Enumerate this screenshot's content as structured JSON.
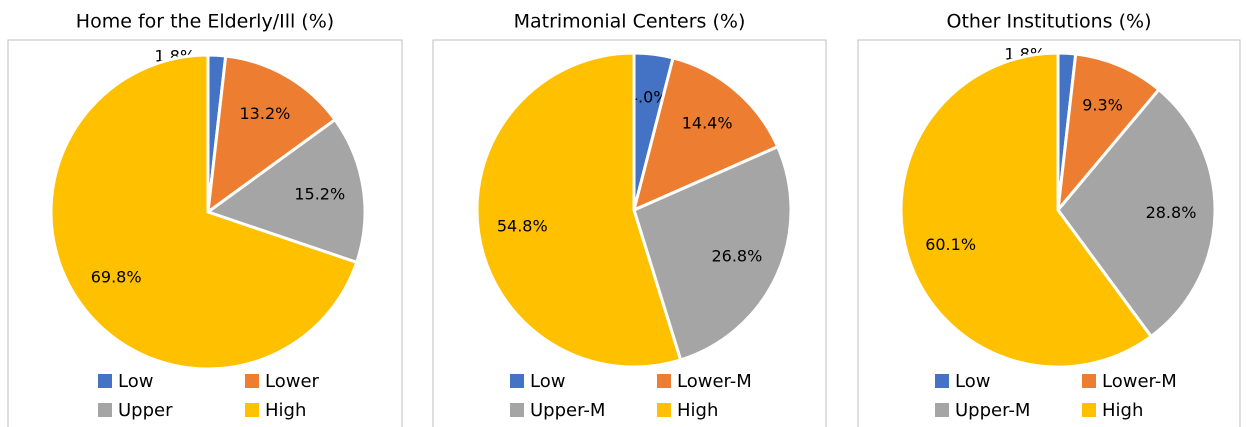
{
  "chart_data": [
    {
      "type": "pie",
      "title": "Home for the Elderly/Ill (%)",
      "categories": [
        "Low",
        "Lower",
        "Upper",
        "High"
      ],
      "values": [
        1.8,
        13.2,
        15.2,
        69.8
      ],
      "value_labels": [
        "1.8%",
        "13.2%",
        "15.2%",
        "69.8%"
      ],
      "colors": [
        "#4472c4",
        "#ed7d31",
        "#a5a5a5",
        "#ffc000"
      ]
    },
    {
      "type": "pie",
      "title": "Matrimonial Centers (%)",
      "categories": [
        "Low",
        "Lower-M",
        "Upper-M",
        "High"
      ],
      "values": [
        4.0,
        14.4,
        26.8,
        54.8
      ],
      "value_labels": [
        "4.0%",
        "14.4%",
        "26.8%",
        "54.8%"
      ],
      "colors": [
        "#4472c4",
        "#ed7d31",
        "#a5a5a5",
        "#ffc000"
      ]
    },
    {
      "type": "pie",
      "title": "Other Institutions (%)",
      "categories": [
        "Low",
        "Lower-M",
        "Upper-M",
        "High"
      ],
      "values": [
        1.8,
        9.3,
        28.8,
        60.1
      ],
      "value_labels": [
        "1.8%",
        "9.3%",
        "28.8%",
        "60.1%"
      ],
      "colors": [
        "#4472c4",
        "#ed7d31",
        "#a5a5a5",
        "#ffc000"
      ]
    }
  ]
}
